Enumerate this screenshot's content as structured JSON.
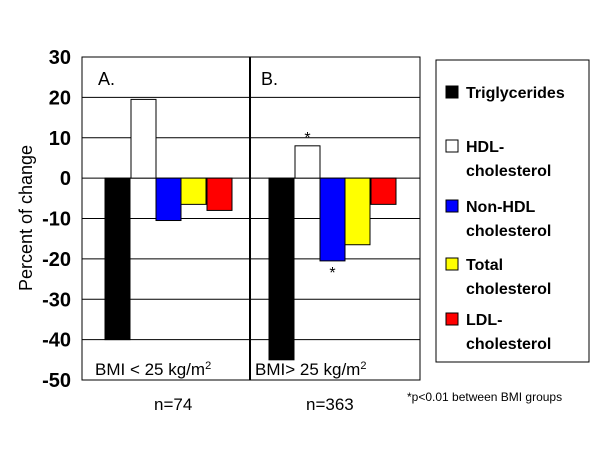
{
  "chart_data": {
    "type": "bar",
    "ylabel": "Percent of change",
    "ylim": [
      -50,
      30
    ],
    "yticks": [
      "30",
      "20",
      "10",
      "0",
      "-10",
      "-20",
      "-30",
      "-40",
      "-50"
    ],
    "grid": true,
    "legend_position": "right",
    "series": [
      {
        "name": "Triglycerides",
        "color": "#000000",
        "values": [
          -40,
          -45
        ]
      },
      {
        "name": "HDL-cholesterol",
        "color": "#ffffff",
        "values": [
          19.5,
          8
        ]
      },
      {
        "name": "Non-HDL cholesterol",
        "color": "#0000ff",
        "values": [
          -10.5,
          -20.5
        ]
      },
      {
        "name": "Total cholesterol",
        "color": "#ffff00",
        "values": [
          -6.5,
          -16.5
        ]
      },
      {
        "name": "LDL-cholesterol",
        "color": "#ff0000",
        "values": [
          -8,
          -6.5
        ]
      }
    ],
    "panels": [
      {
        "letter": "A.",
        "condition": "BMI < 25 kg/m",
        "sup": "2",
        "n": "n=74",
        "stars": []
      },
      {
        "letter": "B.",
        "condition": "BMI> 25 kg/m",
        "sup": "2",
        "n": "n=363",
        "stars": [
          {
            "series": 1,
            "text": "*",
            "where": "above"
          },
          {
            "series": 2,
            "text": "*",
            "where": "below"
          }
        ]
      }
    ],
    "legend": [
      {
        "lines": [
          "Triglycerides"
        ],
        "color": "#000000"
      },
      {
        "lines": [
          "HDL-",
          "cholesterol"
        ],
        "color": "#ffffff"
      },
      {
        "lines": [
          "Non-HDL",
          "cholesterol"
        ],
        "color": "#0000ff"
      },
      {
        "lines": [
          "Total",
          "cholesterol"
        ],
        "color": "#ffff00"
      },
      {
        "lines": [
          "LDL-",
          "cholesterol"
        ],
        "color": "#ff0000"
      }
    ],
    "footnote": "*p<0.01 between BMI groups"
  }
}
